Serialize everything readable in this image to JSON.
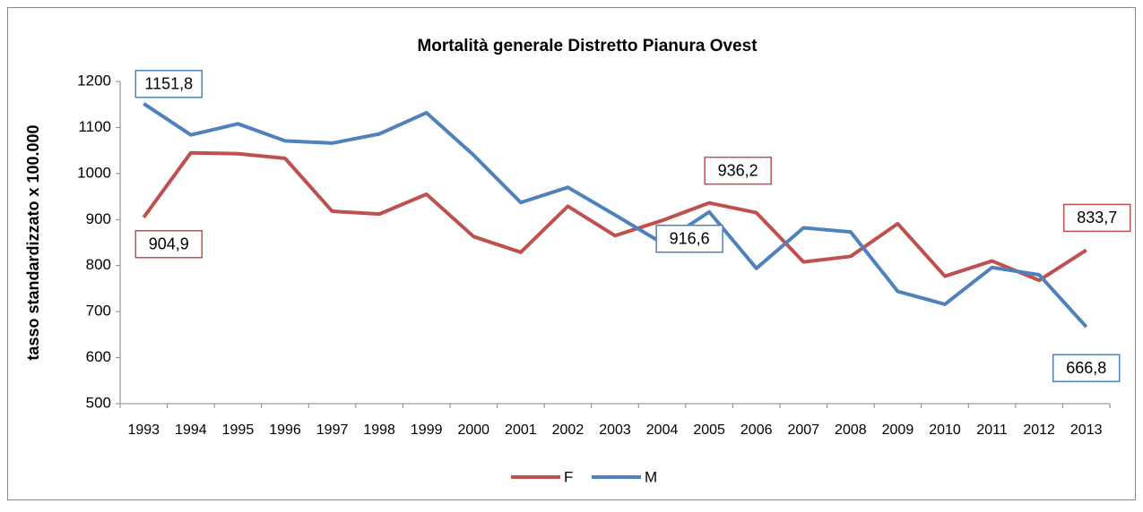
{
  "chart_data": {
    "type": "line",
    "title": "Mortalità generale Distretto Pianura Ovest",
    "y_label": "tasso standardizzato x 100.000",
    "categories": [
      "1993",
      "1994",
      "1995",
      "1996",
      "1997",
      "1998",
      "1999",
      "2000",
      "2001",
      "2002",
      "2003",
      "2004",
      "2005",
      "2006",
      "2007",
      "2008",
      "2009",
      "2010",
      "2011",
      "2012",
      "2013"
    ],
    "series": [
      {
        "name": "F",
        "color": "#c0504d",
        "values": [
          904.9,
          1045,
          1043,
          1033,
          918,
          912,
          955,
          863,
          829,
          929,
          865,
          898,
          936.2,
          915,
          808,
          820,
          891,
          777,
          810,
          768,
          833.7
        ],
        "value_labels": [
          "904,9",
          null,
          null,
          null,
          null,
          null,
          null,
          null,
          null,
          null,
          null,
          null,
          "936,2",
          null,
          null,
          null,
          null,
          null,
          null,
          null,
          "833,7"
        ]
      },
      {
        "name": "M",
        "color": "#4f81bd",
        "values": [
          1151.8,
          1084,
          1108,
          1071,
          1066,
          1086,
          1132,
          1040,
          937,
          970,
          910,
          849,
          916.6,
          794,
          882,
          873,
          744,
          716,
          796,
          780,
          666.8
        ],
        "value_labels": [
          "1151,8",
          null,
          null,
          null,
          null,
          null,
          null,
          null,
          null,
          null,
          null,
          null,
          "916,6",
          null,
          null,
          null,
          null,
          null,
          null,
          null,
          "666,8"
        ]
      }
    ],
    "ylim": [
      500,
      1200
    ],
    "yticks": [
      500,
      600,
      700,
      800,
      900,
      1000,
      1100,
      1200
    ],
    "grid": false,
    "legend": "bottom"
  }
}
